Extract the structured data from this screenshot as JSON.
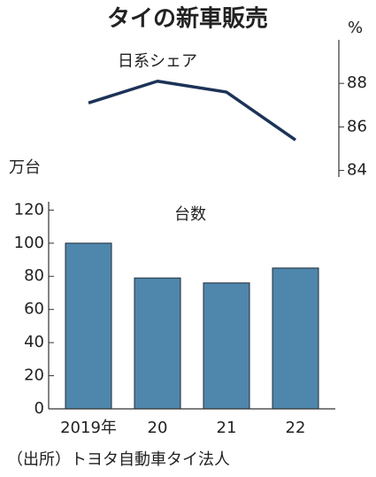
{
  "title": "タイの新車販売",
  "source": "（出所）トヨタ自動車タイ法人",
  "chart_data": [
    {
      "type": "line",
      "label": "日系シェア",
      "y_unit": "%",
      "axis_side": "right",
      "series": [
        {
          "name": "日系シェア",
          "color": "#1c3357",
          "values": [
            87.1,
            88.1,
            87.6,
            85.4
          ]
        }
      ],
      "ylim": [
        83.7,
        90
      ],
      "yticks": [
        84,
        86,
        88
      ]
    },
    {
      "type": "bar",
      "label": "台数",
      "y_unit": "万台",
      "axis_side": "left",
      "categories": [
        "2019年",
        "20",
        "21",
        "22"
      ],
      "values": [
        100,
        79,
        76,
        85
      ],
      "color": "#4f86ab",
      "ylim": [
        0,
        125
      ],
      "yticks": [
        0,
        20,
        40,
        60,
        80,
        100,
        120
      ],
      "grid": false
    }
  ]
}
